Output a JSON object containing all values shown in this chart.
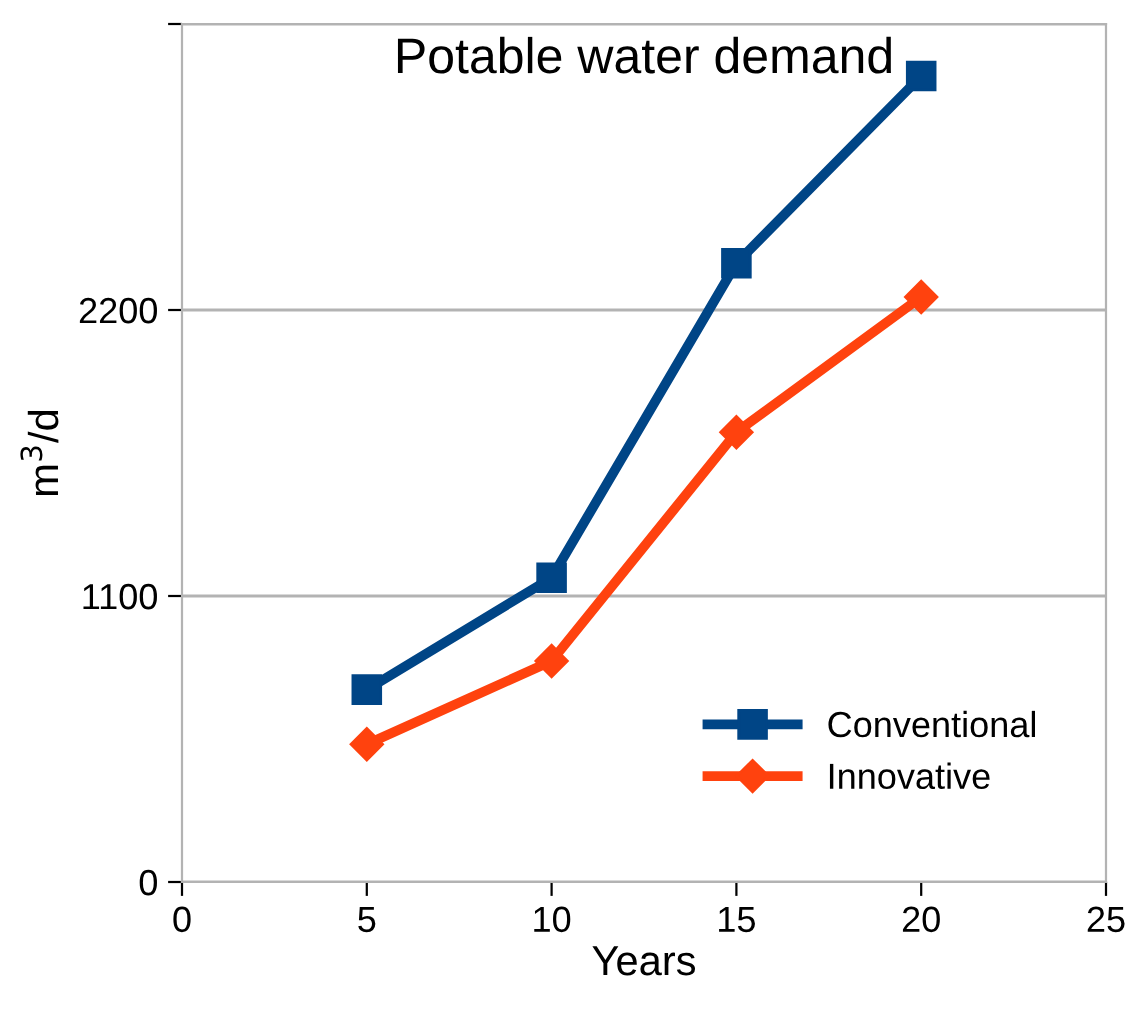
{
  "chart_data": {
    "type": "line",
    "title": "Potable water demand",
    "xlabel": "Years",
    "ylabel": "m$^{3}$/d",
    "x": [
      5,
      10,
      15,
      20
    ],
    "series": [
      {
        "name": "Conventional",
        "color": "#004586",
        "marker": "square",
        "values": [
          740,
          1170,
          2380,
          3100
        ]
      },
      {
        "name": "Innovative",
        "color": "#ff420e",
        "marker": "diamond",
        "values": [
          530,
          850,
          1730,
          2250
        ]
      }
    ],
    "xlim": [
      0,
      25
    ],
    "xticks": [
      0,
      5,
      10,
      15,
      20,
      25
    ],
    "ylim": [
      0,
      3300
    ],
    "yticks": [
      0,
      1100,
      2200,
      {
        "value": 3300,
        "label": null
      }
    ],
    "grid": "y",
    "legend": "bottom right",
    "line_style": "solid"
  }
}
